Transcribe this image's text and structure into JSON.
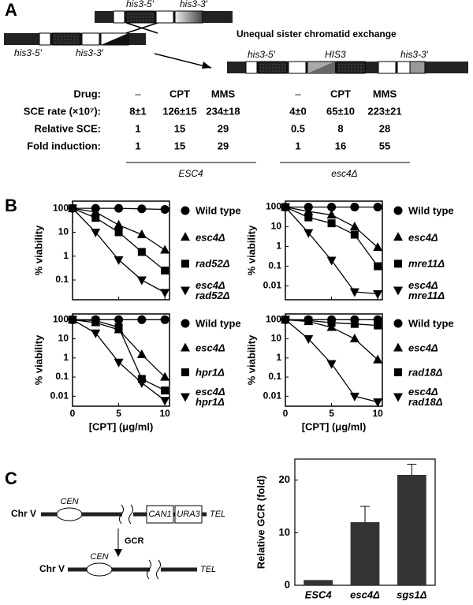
{
  "panel_a": {
    "label": "A",
    "diagram": {
      "top_labels": [
        "his3-5′",
        "his3-3′"
      ],
      "bottom_labels": [
        "his3-5′",
        "his3-3′"
      ],
      "arrow_label": "Unequal sister chromatid exchange",
      "product_labels": [
        "his3-5′",
        "HIS3",
        "his3-3′"
      ]
    },
    "table": {
      "rows": [
        [
          "Drug:",
          "–",
          "CPT",
          "MMS",
          "–",
          "CPT",
          "MMS"
        ],
        [
          "SCE rate (×10⁷):",
          "8±1",
          "126±15",
          "234±18",
          "4±0",
          "65±10",
          "223±21"
        ],
        [
          "Relative SCE:",
          1,
          15,
          29,
          0.5,
          8,
          28
        ],
        [
          "Fold induction:",
          1,
          15,
          29,
          1,
          16,
          55
        ]
      ],
      "groups": [
        "ESC4",
        "esc4Δ"
      ]
    }
  },
  "panel_b": {
    "label": "B"
  },
  "panel_c": {
    "label": "C",
    "diagram": {
      "chromosome": "Chr V",
      "centromere": "CEN",
      "markers": [
        "CAN1",
        "URA3"
      ],
      "telomere": "TEL",
      "arrow_label": "GCR",
      "product_chromosome": "Chr V",
      "product_centromere": "CEN",
      "product_telomere": "TEL"
    }
  },
  "chart_data": [
    {
      "type": "line",
      "ylabel": "% viability",
      "log_y": true,
      "x": [
        0,
        2.5,
        5,
        7.5,
        10
      ],
      "xlim": [
        0,
        10.5
      ],
      "xticks": [
        0,
        5,
        10
      ],
      "ylim": [
        0.015,
        200
      ],
      "yticks": [
        100,
        10,
        1,
        0.1
      ],
      "series": [
        {
          "name": "Wild type",
          "color": "#000",
          "marker": "circle",
          "values": [
            100,
            100,
            100,
            95,
            90
          ]
        },
        {
          "name": "esc4Δ",
          "color": "#000",
          "marker": "triangle-up",
          "values": [
            100,
            70,
            20,
            8,
            1.8
          ]
        },
        {
          "name": "rad52Δ",
          "color": "#000",
          "marker": "square",
          "values": [
            100,
            40,
            10,
            1.5,
            0.25
          ]
        },
        {
          "name": "esc4Δ rad52Δ",
          "color": "#000",
          "marker": "triangle-down",
          "values": [
            100,
            10,
            0.7,
            0.1,
            0.03
          ]
        }
      ]
    },
    {
      "type": "line",
      "ylabel": "% viability",
      "log_y": true,
      "x": [
        0,
        2.5,
        5,
        7.5,
        10
      ],
      "xlim": [
        0,
        10.5
      ],
      "xticks": [
        0,
        5,
        10
      ],
      "ylim": [
        0.002,
        200
      ],
      "yticks": [
        100,
        10,
        1,
        0.1,
        0.01
      ],
      "series": [
        {
          "name": "Wild type",
          "color": "#000",
          "marker": "circle",
          "values": [
            100,
            100,
            100,
            100,
            100
          ]
        },
        {
          "name": "esc4Δ",
          "color": "#000",
          "marker": "triangle-up",
          "values": [
            100,
            60,
            40,
            10,
            0.9
          ]
        },
        {
          "name": "mre11Δ",
          "color": "#000",
          "marker": "square",
          "values": [
            100,
            30,
            15,
            4,
            0.1
          ]
        },
        {
          "name": "esc4Δ mre11Δ",
          "color": "#000",
          "marker": "triangle-down",
          "values": [
            100,
            5,
            0.2,
            0.005,
            0.004
          ]
        }
      ]
    },
    {
      "type": "line",
      "xlabel": "[CPT] (μg/ml)",
      "ylabel": "% viability",
      "log_y": true,
      "x": [
        0,
        2.5,
        5,
        7.5,
        10
      ],
      "xlim": [
        0,
        10.5
      ],
      "xticks": [
        0,
        5,
        10
      ],
      "ylim": [
        0.003,
        200
      ],
      "yticks": [
        100,
        10,
        1,
        0.1,
        0.01
      ],
      "series": [
        {
          "name": "Wild type",
          "color": "#000",
          "marker": "circle",
          "values": [
            100,
            100,
            100,
            100,
            100
          ]
        },
        {
          "name": "esc4Δ",
          "color": "#000",
          "marker": "triangle-up",
          "values": [
            100,
            70,
            30,
            1.5,
            0.1
          ]
        },
        {
          "name": "hpr1Δ",
          "color": "#000",
          "marker": "square",
          "values": [
            100,
            90,
            40,
            0.08,
            0.02
          ]
        },
        {
          "name": "esc4Δ hpr1Δ",
          "color": "#000",
          "marker": "triangle-down",
          "values": [
            100,
            20,
            0.6,
            0.05,
            0.006
          ]
        }
      ]
    },
    {
      "type": "line",
      "xlabel": "[CPT] (μg/ml)",
      "ylabel": "% viability",
      "log_y": true,
      "x": [
        0,
        2.5,
        5,
        7.5,
        10
      ],
      "xlim": [
        0,
        10.5
      ],
      "xticks": [
        0,
        5,
        10
      ],
      "ylim": [
        0.003,
        200
      ],
      "yticks": [
        100,
        10,
        1,
        0.1,
        0.01
      ],
      "series": [
        {
          "name": "Wild type",
          "color": "#000",
          "marker": "circle",
          "values": [
            100,
            100,
            100,
            100,
            100
          ]
        },
        {
          "name": "esc4Δ",
          "color": "#000",
          "marker": "triangle-up",
          "values": [
            100,
            80,
            40,
            10,
            0.8
          ]
        },
        {
          "name": "rad18Δ",
          "color": "#000",
          "marker": "square",
          "values": [
            100,
            90,
            70,
            60,
            50
          ]
        },
        {
          "name": "esc4Δ rad18Δ",
          "color": "#000",
          "marker": "triangle-down",
          "values": [
            100,
            10,
            0.5,
            0.01,
            0.005
          ]
        }
      ]
    },
    {
      "type": "bar",
      "ylabel": "Relative GCR (fold)",
      "categories": [
        "ESC4",
        "esc4Δ",
        "sgs1Δ"
      ],
      "values": [
        1,
        12,
        21
      ],
      "errors": [
        null,
        3,
        2
      ],
      "color": "#333",
      "ylim": [
        0,
        24
      ],
      "yticks": [
        0,
        10,
        20
      ]
    }
  ]
}
